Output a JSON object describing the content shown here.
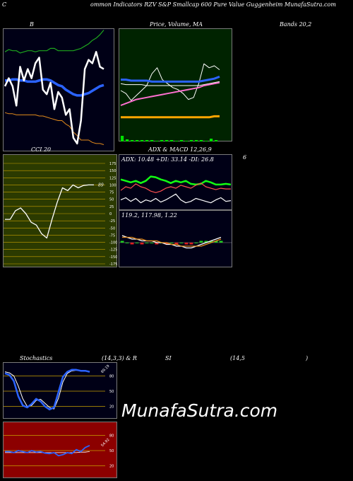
{
  "header": "ommon Indicators RZV S&P Smallcap 600 Pure Value Guggenheim MunafaSutra.com",
  "header_prefix": "C",
  "titles": {
    "bollinger": "B",
    "price_ma": "Price, Volume, MA",
    "bands": "Bands 20,2",
    "cci": "CCI 20",
    "adx_macd": "ADX & MACD 12,26,9",
    "adx_macd_num": "6",
    "stoch_a": "Stochastics",
    "stoch_b": "(14,3,3) & R",
    "stoch_c": "SI",
    "stoch_d": "(14,5",
    "stoch_e": ")"
  },
  "watermark": "MunafaSutra.com",
  "chart_data": [
    {
      "type": "line",
      "name": "bollinger-panel",
      "ylim": [
        0,
        100
      ],
      "series": [
        {
          "name": "close",
          "color": "#ffffff",
          "values": [
            55,
            62,
            55,
            38,
            72,
            60,
            70,
            62,
            75,
            80,
            52,
            48,
            58,
            35,
            50,
            45,
            30,
            35,
            10,
            5,
            25,
            70,
            78,
            75,
            85,
            72,
            70
          ]
        },
        {
          "name": "upper",
          "color": "#1ea71e",
          "values": [
            85,
            87,
            86,
            86,
            84,
            85,
            86,
            86,
            85,
            86,
            86,
            86,
            88,
            88,
            86,
            86,
            86,
            86,
            86,
            87,
            88,
            90,
            92,
            95,
            97,
            100,
            104
          ]
        },
        {
          "name": "middle",
          "color": "#2b63ff",
          "values": [
            60,
            60,
            61,
            61,
            60,
            60,
            59,
            59,
            59,
            60,
            61,
            61,
            60,
            58,
            56,
            55,
            52,
            50,
            48,
            47,
            47,
            48,
            49,
            51,
            53,
            55,
            56
          ]
        },
        {
          "name": "lower",
          "color": "#e28a1c",
          "values": [
            32,
            31,
            31,
            30,
            30,
            30,
            30,
            30,
            30,
            29,
            29,
            28,
            27,
            26,
            25,
            25,
            22,
            20,
            15,
            12,
            8,
            8,
            8,
            6,
            5,
            5,
            4
          ]
        }
      ]
    },
    {
      "type": "line",
      "name": "price-ma-panel",
      "ylim": [
        0,
        100
      ],
      "series": [
        {
          "name": "price",
          "color": "#ffffff",
          "values": [
            45,
            42,
            35,
            40,
            45,
            50,
            62,
            68,
            56,
            52,
            48,
            46,
            42,
            36,
            38,
            52,
            72,
            68,
            70,
            66
          ]
        },
        {
          "name": "ma-blue",
          "color": "#2b63ff",
          "values": [
            56,
            56,
            55,
            55,
            55,
            55,
            54,
            54,
            54,
            54,
            54,
            54,
            54,
            54,
            54,
            54,
            55,
            56,
            57,
            59
          ]
        },
        {
          "name": "ma-white",
          "color": "#ffffff",
          "values": [
            52,
            51,
            51,
            51,
            51,
            50,
            50,
            50,
            50,
            50,
            50,
            50,
            50,
            50,
            50,
            50,
            51,
            52,
            53,
            54
          ]
        },
        {
          "name": "ma-pink",
          "color": "#ff70d0",
          "values": [
            30,
            32,
            34,
            36,
            37,
            38,
            39,
            40,
            41,
            42,
            43,
            44,
            45,
            46,
            47,
            48,
            50,
            51,
            52,
            53
          ]
        },
        {
          "name": "ma-orange",
          "color": "#ffa500",
          "values": [
            18,
            18,
            18,
            18,
            18,
            18,
            18,
            18,
            18,
            18,
            18,
            18,
            18,
            18,
            18,
            18,
            18,
            18,
            19,
            19
          ]
        }
      ],
      "volume": [
        8,
        3,
        2,
        2,
        2,
        2,
        2,
        1,
        2,
        2,
        2,
        1,
        2,
        1,
        2,
        2,
        2,
        1,
        4,
        2
      ]
    },
    {
      "type": "line",
      "name": "cci-panel",
      "ylim": [
        -175,
        175
      ],
      "yticks": [
        175,
        150,
        125,
        100,
        75,
        50,
        25,
        0,
        -25,
        -50,
        -75,
        -100,
        -125,
        -150,
        -175
      ],
      "series": [
        {
          "name": "cci",
          "color": "#ffffff",
          "values": [
            -20,
            -20,
            10,
            20,
            0,
            -30,
            -40,
            -70,
            -85,
            -20,
            40,
            90,
            80,
            100,
            90,
            98,
            100,
            100
          ]
        }
      ],
      "value_label": "89"
    },
    {
      "type": "line",
      "name": "adx-panel",
      "readout": "ADX: 10.48 +DI: 33.14 -DI: 26.8",
      "ylim": [
        0,
        60
      ],
      "series": [
        {
          "name": "adx",
          "color": "#ffffff",
          "values": [
            12,
            15,
            10,
            14,
            8,
            12,
            10,
            14,
            9,
            12,
            16,
            20,
            12,
            8,
            10,
            14,
            12,
            10,
            8,
            12,
            15,
            10,
            11
          ]
        },
        {
          "name": "+di",
          "color": "#12ff12",
          "values": [
            40,
            38,
            36,
            38,
            35,
            38,
            44,
            43,
            40,
            38,
            35,
            38,
            36,
            38,
            34,
            33,
            34,
            38,
            36,
            33,
            33,
            34,
            33
          ]
        },
        {
          "name": "-di",
          "color": "#ff5050",
          "values": [
            25,
            30,
            28,
            34,
            30,
            28,
            24,
            22,
            24,
            28,
            30,
            28,
            32,
            30,
            28,
            32,
            35,
            30,
            28,
            26,
            28,
            27,
            27
          ]
        }
      ]
    },
    {
      "type": "line",
      "name": "macd-panel",
      "readout": "119.2, 117.98, 1.22",
      "ylim": [
        -10,
        10
      ],
      "series": [
        {
          "name": "macd",
          "color": "#ffffff",
          "values": [
            4,
            3,
            2,
            2,
            1,
            1,
            1,
            0,
            0,
            -1,
            -1,
            -2,
            -2,
            -3,
            -3,
            -2,
            -1,
            0,
            1,
            2,
            3
          ]
        },
        {
          "name": "signal",
          "color": "#e28a1c",
          "values": [
            3,
            3,
            3,
            2,
            2,
            1,
            1,
            1,
            0,
            0,
            -1,
            -1,
            -2,
            -2,
            -2,
            -2,
            -2,
            -1,
            0,
            1,
            2
          ]
        }
      ]
    },
    {
      "type": "line",
      "name": "stochastics-panel",
      "ylim": [
        0,
        100
      ],
      "yticks": [
        80,
        50,
        20
      ],
      "series": [
        {
          "name": "%K",
          "color": "#2b63ff",
          "values": [
            85,
            82,
            70,
            40,
            22,
            18,
            25,
            35,
            30,
            20,
            14,
            18,
            48,
            78,
            88,
            92,
            92,
            90,
            90,
            88
          ]
        },
        {
          "name": "%D",
          "color": "#ffffff",
          "values": [
            88,
            86,
            80,
            60,
            35,
            20,
            22,
            32,
            34,
            26,
            18,
            15,
            36,
            68,
            85,
            90,
            91,
            90,
            90,
            88
          ]
        }
      ],
      "value_label": "89.19"
    },
    {
      "type": "line",
      "name": "rsi-panel",
      "ylim": [
        0,
        100
      ],
      "yticks": [
        80,
        50,
        20
      ],
      "series": [
        {
          "name": "rsi",
          "color": "#2b63ff",
          "values": [
            48,
            48,
            46,
            50,
            48,
            46,
            50,
            47,
            48,
            45,
            44,
            46,
            40,
            42,
            46,
            44,
            52,
            48,
            56,
            60
          ]
        },
        {
          "name": "mfi",
          "color": "#ffffff",
          "values": [
            46,
            46,
            46,
            46,
            46,
            46,
            46,
            46,
            46,
            46,
            46,
            46,
            46,
            46,
            46,
            46,
            46,
            47,
            47,
            48
          ]
        }
      ],
      "value_label": "54.92"
    }
  ]
}
